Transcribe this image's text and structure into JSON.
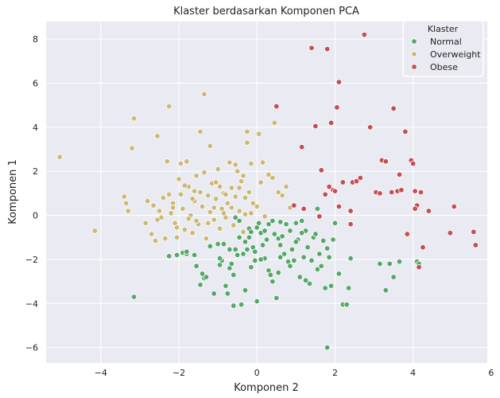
{
  "chart_data": {
    "type": "scatter",
    "title": "Klaster berdasarkan Komponen PCA",
    "xlabel": "Komponen 2",
    "ylabel": "Komponen 1",
    "xlim": [
      -5.4,
      5.9
    ],
    "ylim": [
      -6.7,
      8.8
    ],
    "xticks": [
      -4,
      -2,
      0,
      2,
      4,
      6
    ],
    "yticks": [
      -6,
      -4,
      -2,
      0,
      2,
      4,
      6,
      8
    ],
    "grid": true,
    "legend": {
      "title": "Klaster",
      "placement": "top-right"
    },
    "series": [
      {
        "name": "Normal",
        "color": "#55a868",
        "points": [
          [
            -3.15,
            -3.7
          ],
          [
            -2.25,
            -1.85
          ],
          [
            -2.05,
            -1.8
          ],
          [
            -1.9,
            -1.7
          ],
          [
            -1.8,
            -1.75
          ],
          [
            -1.6,
            -1.8
          ],
          [
            -1.55,
            -2.3
          ],
          [
            -1.45,
            -3.15
          ],
          [
            -1.35,
            -2.85
          ],
          [
            -1.3,
            -2.8
          ],
          [
            -1.2,
            -1.4
          ],
          [
            -1.1,
            -3.55
          ],
          [
            -1.0,
            -1.3
          ],
          [
            -0.95,
            -2.25
          ],
          [
            -0.9,
            -2.05
          ],
          [
            -0.85,
            -1.3
          ],
          [
            -0.8,
            -3.2
          ],
          [
            -0.75,
            -3.55
          ],
          [
            -0.7,
            -2.4
          ],
          [
            -0.65,
            -2.2
          ],
          [
            -0.6,
            -2.7
          ],
          [
            -0.55,
            -1.55
          ],
          [
            -0.5,
            -1.8
          ],
          [
            -0.45,
            -1.0
          ],
          [
            -0.4,
            -4.05
          ],
          [
            -0.35,
            -1.75
          ],
          [
            -0.3,
            -1.2
          ],
          [
            -0.25,
            -1.55
          ],
          [
            -0.2,
            -0.6
          ],
          [
            -0.15,
            -0.75
          ],
          [
            -0.1,
            -1.45
          ],
          [
            -0.05,
            -1.65
          ],
          [
            0.0,
            -0.55
          ],
          [
            0.05,
            -0.35
          ],
          [
            0.1,
            -0.8
          ],
          [
            0.15,
            -1.35
          ],
          [
            0.2,
            -0.7
          ],
          [
            0.25,
            -1.1
          ],
          [
            0.3,
            -2.5
          ],
          [
            0.35,
            -2.7
          ],
          [
            0.4,
            -3.0
          ],
          [
            0.45,
            -0.85
          ],
          [
            0.5,
            -3.75
          ],
          [
            0.55,
            -1.05
          ],
          [
            0.6,
            -1.35
          ],
          [
            0.65,
            -0.95
          ],
          [
            0.7,
            -1.75
          ],
          [
            0.75,
            -0.4
          ],
          [
            0.8,
            -2.1
          ],
          [
            0.85,
            -2.3
          ],
          [
            0.9,
            -1.55
          ],
          [
            0.95,
            -2.05
          ],
          [
            1.0,
            -0.35
          ],
          [
            1.05,
            -1.1
          ],
          [
            1.1,
            -2.8
          ],
          [
            1.15,
            -0.25
          ],
          [
            1.2,
            -1.9
          ],
          [
            1.25,
            -0.7
          ],
          [
            1.3,
            -1.45
          ],
          [
            1.35,
            -3.1
          ],
          [
            1.4,
            -2.05
          ],
          [
            1.45,
            -1.0
          ],
          [
            1.5,
            -0.85
          ],
          [
            1.55,
            -2.45
          ],
          [
            1.6,
            -1.75
          ],
          [
            1.65,
            -2.3
          ],
          [
            1.7,
            -1.15
          ],
          [
            1.75,
            -3.3
          ],
          [
            1.8,
            -6.0
          ],
          [
            1.85,
            -1.9
          ],
          [
            1.9,
            -3.2
          ],
          [
            1.95,
            -1.1
          ],
          [
            2.0,
            -0.35
          ],
          [
            2.1,
            -2.65
          ],
          [
            2.2,
            -4.05
          ],
          [
            2.3,
            -4.05
          ],
          [
            2.35,
            -3.3
          ],
          [
            2.4,
            -1.95
          ],
          [
            0.0,
            -3.9
          ],
          [
            -0.6,
            -4.1
          ],
          [
            -0.05,
            -2.05
          ],
          [
            -0.3,
            -3.4
          ],
          [
            -0.95,
            -1.95
          ],
          [
            0.2,
            -1.95
          ],
          [
            -0.15,
            -2.35
          ],
          [
            0.6,
            -1.9
          ],
          [
            1.25,
            -2.95
          ],
          [
            -1.4,
            -2.65
          ],
          [
            0.4,
            -0.25
          ],
          [
            0.85,
            -0.7
          ],
          [
            1.55,
            0.3
          ],
          [
            -0.45,
            -0.25
          ],
          [
            0.6,
            -0.3
          ],
          [
            1.8,
            -1.5
          ],
          [
            0.1,
            -2.0
          ],
          [
            -0.7,
            -1.55
          ],
          [
            1.0,
            -1.2
          ],
          [
            -0.2,
            -1.0
          ],
          [
            0.55,
            -2.6
          ],
          [
            3.15,
            -2.2
          ],
          [
            3.3,
            -3.4
          ],
          [
            3.5,
            -2.8
          ],
          [
            3.65,
            -2.1
          ],
          [
            3.4,
            -2.2
          ],
          [
            4.1,
            -2.1
          ],
          [
            4.15,
            -2.2
          ],
          [
            -0.55,
            -0.1
          ],
          [
            0.3,
            -0.4
          ],
          [
            1.15,
            -0.8
          ],
          [
            -1.8,
            -1.65
          ]
        ]
      },
      {
        "name": "Overweight",
        "color": "#ccb974",
        "points": [
          [
            -5.05,
            2.65
          ],
          [
            -4.15,
            -0.7
          ],
          [
            -3.4,
            0.85
          ],
          [
            -3.35,
            0.55
          ],
          [
            -3.3,
            0.2
          ],
          [
            -3.2,
            3.05
          ],
          [
            -3.15,
            4.4
          ],
          [
            -2.8,
            0.65
          ],
          [
            -2.7,
            -0.85
          ],
          [
            -2.6,
            -1.15
          ],
          [
            -2.55,
            3.6
          ],
          [
            -2.5,
            0.2
          ],
          [
            -2.45,
            -0.1
          ],
          [
            -2.4,
            0.8
          ],
          [
            -2.35,
            -1.05
          ],
          [
            -2.3,
            2.45
          ],
          [
            -2.25,
            4.95
          ],
          [
            -2.2,
            0.1
          ],
          [
            -2.15,
            0.55
          ],
          [
            -2.1,
            -0.35
          ],
          [
            -2.05,
            -1.0
          ],
          [
            -2.0,
            1.65
          ],
          [
            -1.95,
            0.95
          ],
          [
            -1.9,
            0.3
          ],
          [
            -1.85,
            -0.65
          ],
          [
            -1.8,
            2.45
          ],
          [
            -1.75,
            1.3
          ],
          [
            -1.7,
            0.0
          ],
          [
            -1.65,
            -0.8
          ],
          [
            -1.6,
            0.65
          ],
          [
            -1.55,
            1.8
          ],
          [
            -1.5,
            -0.4
          ],
          [
            -1.45,
            1.05
          ],
          [
            -1.4,
            0.4
          ],
          [
            -1.35,
            5.5
          ],
          [
            -1.3,
            -1.05
          ],
          [
            -1.25,
            0.9
          ],
          [
            -1.2,
            0.15
          ],
          [
            -1.15,
            1.45
          ],
          [
            -1.1,
            -0.2
          ],
          [
            -1.05,
            0.75
          ],
          [
            -1.0,
            2.1
          ],
          [
            -0.95,
            -0.6
          ],
          [
            -0.9,
            0.3
          ],
          [
            -0.85,
            1.0
          ],
          [
            -0.8,
            -0.1
          ],
          [
            -0.75,
            0.55
          ],
          [
            -0.7,
            2.4
          ],
          [
            -0.65,
            1.25
          ],
          [
            -0.6,
            -0.45
          ],
          [
            -0.55,
            0.85
          ],
          [
            -0.5,
            2.0
          ],
          [
            -0.45,
            0.2
          ],
          [
            -0.4,
            1.55
          ],
          [
            -0.35,
            -0.75
          ],
          [
            -0.3,
            0.05
          ],
          [
            -0.25,
            3.3
          ],
          [
            -0.2,
            1.05
          ],
          [
            -0.15,
            2.35
          ],
          [
            -0.1,
            0.55
          ],
          [
            0.0,
            0.4
          ],
          [
            0.05,
            3.7
          ],
          [
            0.1,
            1.5
          ],
          [
            0.2,
            -0.05
          ],
          [
            0.3,
            1.85
          ],
          [
            0.4,
            1.7
          ],
          [
            0.45,
            4.2
          ],
          [
            0.55,
            1.05
          ],
          [
            0.65,
            0.9
          ],
          [
            0.75,
            1.3
          ],
          [
            0.85,
            0.35
          ],
          [
            -2.85,
            -0.35
          ],
          [
            -2.65,
            0.45
          ],
          [
            -2.05,
            -0.55
          ],
          [
            -1.95,
            2.35
          ],
          [
            -1.65,
            0.75
          ],
          [
            -1.55,
            -0.25
          ],
          [
            -1.35,
            1.95
          ],
          [
            -1.2,
            3.15
          ],
          [
            -1.1,
            0.35
          ],
          [
            -0.95,
            1.3
          ],
          [
            -0.8,
            0.95
          ],
          [
            -0.65,
            0.35
          ],
          [
            -0.45,
            1.25
          ],
          [
            -0.3,
            0.8
          ],
          [
            -0.15,
            0.1
          ],
          [
            -2.25,
            0.95
          ],
          [
            -1.85,
            1.35
          ],
          [
            -1.45,
            3.8
          ],
          [
            -1.75,
            -0.15
          ],
          [
            -2.55,
            -0.2
          ],
          [
            -2.15,
            0.35
          ],
          [
            -1.6,
            1.1
          ],
          [
            -1.25,
            -0.35
          ],
          [
            -0.85,
            0.1
          ],
          [
            -0.55,
            2.3
          ],
          [
            -0.35,
            1.8
          ],
          [
            -0.25,
            3.8
          ],
          [
            0.15,
            2.4
          ],
          [
            -1.05,
            1.5
          ]
        ]
      },
      {
        "name": "Obese",
        "color": "#c44e52",
        "points": [
          [
            0.5,
            4.95
          ],
          [
            1.15,
            3.1
          ],
          [
            1.4,
            7.6
          ],
          [
            1.5,
            4.05
          ],
          [
            1.65,
            2.05
          ],
          [
            1.75,
            0.95
          ],
          [
            1.8,
            7.55
          ],
          [
            1.85,
            1.3
          ],
          [
            1.9,
            4.2
          ],
          [
            1.95,
            1.15
          ],
          [
            2.05,
            4.9
          ],
          [
            2.1,
            6.05
          ],
          [
            2.2,
            1.5
          ],
          [
            2.4,
            -0.4
          ],
          [
            2.4,
            0.2
          ],
          [
            2.45,
            1.5
          ],
          [
            2.55,
            1.55
          ],
          [
            2.65,
            1.7
          ],
          [
            2.75,
            8.2
          ],
          [
            2.9,
            4.0
          ],
          [
            3.05,
            1.05
          ],
          [
            3.15,
            1.0
          ],
          [
            3.2,
            2.5
          ],
          [
            3.3,
            2.45
          ],
          [
            3.45,
            1.05
          ],
          [
            3.5,
            4.85
          ],
          [
            3.6,
            1.1
          ],
          [
            3.65,
            1.85
          ],
          [
            3.7,
            1.15
          ],
          [
            3.8,
            3.8
          ],
          [
            3.85,
            -0.85
          ],
          [
            3.95,
            2.5
          ],
          [
            4.0,
            2.35
          ],
          [
            4.05,
            1.1
          ],
          [
            4.1,
            0.45
          ],
          [
            4.2,
            1.05
          ],
          [
            4.25,
            -1.45
          ],
          [
            4.4,
            0.2
          ],
          [
            4.95,
            -0.8
          ],
          [
            5.05,
            0.4
          ],
          [
            5.55,
            -0.75
          ],
          [
            5.6,
            -1.35
          ],
          [
            4.15,
            -2.35
          ],
          [
            4.05,
            0.3
          ],
          [
            2.1,
            0.4
          ],
          [
            1.2,
            0.3
          ],
          [
            0.95,
            0.45
          ],
          [
            1.6,
            -0.05
          ],
          [
            2.0,
            1.1
          ]
        ]
      }
    ]
  }
}
